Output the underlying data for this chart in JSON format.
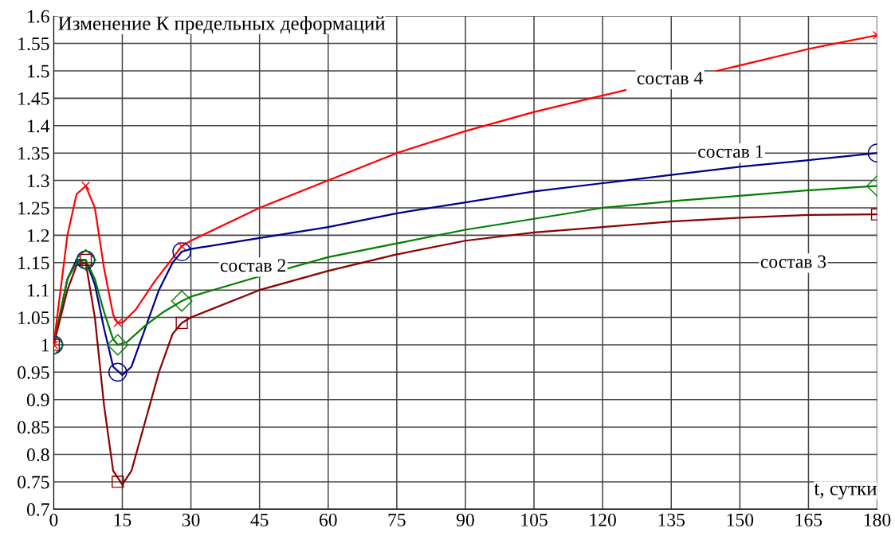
{
  "chart_data": {
    "type": "line",
    "title": "Изменение К предельных деформаций",
    "xlabel": "t, сутки",
    "series": [
      {
        "name": "состав 1",
        "color": "#00008b",
        "x": [
          0,
          3,
          5,
          7,
          9,
          11,
          13,
          15,
          17,
          20,
          23,
          26,
          28,
          30,
          45,
          60,
          75,
          90,
          105,
          120,
          135,
          150,
          165,
          180
        ],
        "values": [
          1.0,
          1.12,
          1.155,
          1.155,
          1.11,
          1.03,
          0.96,
          0.945,
          0.96,
          1.03,
          1.1,
          1.15,
          1.17,
          1.175,
          1.195,
          1.215,
          1.24,
          1.26,
          1.28,
          1.295,
          1.31,
          1.325,
          1.337,
          1.35
        ]
      },
      {
        "name": "состав 2",
        "color": "#008000",
        "x": [
          0,
          3,
          5,
          7,
          9,
          11,
          13,
          14,
          16,
          20,
          24,
          28,
          30,
          45,
          60,
          75,
          90,
          105,
          120,
          135,
          150,
          165,
          180
        ],
        "values": [
          1.0,
          1.12,
          1.15,
          1.155,
          1.12,
          1.06,
          1.01,
          1.0,
          1.005,
          1.035,
          1.06,
          1.08,
          1.088,
          1.125,
          1.16,
          1.185,
          1.21,
          1.23,
          1.25,
          1.262,
          1.272,
          1.282,
          1.29
        ]
      },
      {
        "name": "состав 3",
        "color": "#8b0000",
        "x": [
          0,
          3,
          5,
          7,
          9,
          11,
          13,
          15,
          17,
          20,
          23,
          26,
          28,
          30,
          45,
          60,
          75,
          90,
          105,
          120,
          135,
          150,
          165,
          180
        ],
        "values": [
          1.0,
          1.1,
          1.145,
          1.15,
          1.05,
          0.89,
          0.77,
          0.745,
          0.77,
          0.86,
          0.95,
          1.02,
          1.04,
          1.05,
          1.1,
          1.135,
          1.165,
          1.19,
          1.205,
          1.215,
          1.225,
          1.232,
          1.237,
          1.238
        ]
      },
      {
        "name": "состав 4",
        "color": "#ff0000",
        "x": [
          0,
          3,
          5,
          7,
          9,
          11,
          13,
          14,
          15,
          18,
          22,
          28,
          30,
          45,
          60,
          75,
          90,
          105,
          120,
          125,
          135,
          145,
          150,
          165,
          180
        ],
        "values": [
          1.0,
          1.2,
          1.275,
          1.29,
          1.25,
          1.14,
          1.055,
          1.04,
          1.04,
          1.065,
          1.115,
          1.18,
          1.19,
          1.25,
          1.3,
          1.35,
          1.39,
          1.425,
          1.455,
          1.465,
          null,
          1.5,
          1.51,
          1.54,
          1.565
        ]
      },
      {
        "type": "scatter",
        "marker": "circle",
        "color": "#00008b",
        "x": [
          0,
          7,
          14,
          28,
          180
        ],
        "values": [
          1.0,
          1.155,
          0.95,
          1.17,
          1.35
        ]
      },
      {
        "type": "scatter",
        "marker": "diamond",
        "color": "#008000",
        "x": [
          0,
          7,
          14,
          28,
          180
        ],
        "values": [
          1.0,
          1.155,
          1.0,
          1.08,
          1.29
        ]
      },
      {
        "type": "scatter",
        "marker": "square",
        "color": "#8b0000",
        "x": [
          0,
          7,
          14,
          28,
          180
        ],
        "values": [
          1.0,
          1.155,
          0.75,
          1.04,
          1.238
        ]
      },
      {
        "type": "scatter",
        "marker": "cross",
        "color": "#ff0000",
        "x": [
          0,
          7,
          14,
          28,
          180
        ],
        "values": [
          1.0,
          1.29,
          1.04,
          1.18,
          1.565
        ]
      }
    ],
    "xlim": [
      0,
      180
    ],
    "xticks": [
      0,
      15,
      30,
      45,
      60,
      75,
      90,
      105,
      120,
      135,
      150,
      165,
      180
    ],
    "ylim": [
      0.7,
      1.6
    ],
    "yticks": [
      0.7,
      0.75,
      0.8,
      0.85,
      0.9,
      0.95,
      1,
      1.05,
      1.1,
      1.15,
      1.2,
      1.25,
      1.3,
      1.35,
      1.4,
      1.45,
      1.5,
      1.55,
      1.6
    ],
    "grid": true
  }
}
